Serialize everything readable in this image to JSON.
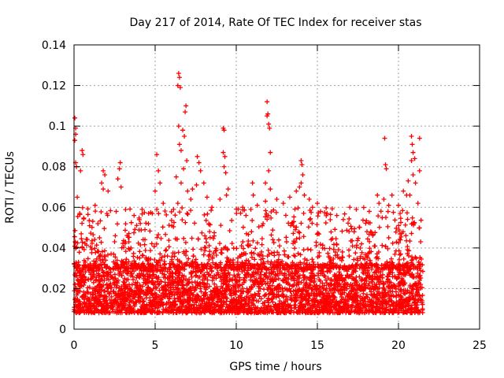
{
  "chart_data": {
    "type": "scatter",
    "title": "Day 217 of 2014, Rate Of TEC Index for receiver stas",
    "xlabel": "GPS time / hours",
    "ylabel": "ROTI / TECUs",
    "xlim": [
      0,
      25
    ],
    "ylim": [
      0,
      0.14
    ],
    "xticks": [
      0,
      5,
      10,
      15,
      20,
      25
    ],
    "xtick_labels": [
      "0",
      "5",
      "10",
      "15",
      "20",
      "25"
    ],
    "yticks": [
      0,
      0.02,
      0.04,
      0.06,
      0.08,
      0.1,
      0.12,
      0.14
    ],
    "ytick_labels": [
      "0",
      "0.02",
      "0.04",
      "0.06",
      "0.08",
      "0.1",
      "0.12",
      "0.14"
    ],
    "grid": true,
    "marker": "plus",
    "color": "#ff0000",
    "x_range_of_data": [
      0,
      21.5
    ],
    "typical_value_band": [
      0.008,
      0.03
    ],
    "notable_points": [
      {
        "x": 0.05,
        "y": 0.104
      },
      {
        "x": 0.1,
        "y": 0.099
      },
      {
        "x": 0.1,
        "y": 0.096
      },
      {
        "x": 0.05,
        "y": 0.093
      },
      {
        "x": 0.5,
        "y": 0.088
      },
      {
        "x": 0.55,
        "y": 0.086
      },
      {
        "x": 0.1,
        "y": 0.082
      },
      {
        "x": 0.15,
        "y": 0.08
      },
      {
        "x": 0.4,
        "y": 0.078
      },
      {
        "x": 0.2,
        "y": 0.065
      },
      {
        "x": 0.35,
        "y": 0.057
      },
      {
        "x": 1.8,
        "y": 0.078
      },
      {
        "x": 1.9,
        "y": 0.076
      },
      {
        "x": 1.7,
        "y": 0.072
      },
      {
        "x": 1.8,
        "y": 0.069
      },
      {
        "x": 1.3,
        "y": 0.061
      },
      {
        "x": 2.1,
        "y": 0.068
      },
      {
        "x": 2.85,
        "y": 0.082
      },
      {
        "x": 2.8,
        "y": 0.079
      },
      {
        "x": 2.7,
        "y": 0.074
      },
      {
        "x": 2.9,
        "y": 0.07
      },
      {
        "x": 2.6,
        "y": 0.058
      },
      {
        "x": 4.2,
        "y": 0.059
      },
      {
        "x": 4.6,
        "y": 0.057
      },
      {
        "x": 3.7,
        "y": 0.056
      },
      {
        "x": 5.1,
        "y": 0.086
      },
      {
        "x": 5.2,
        "y": 0.078
      },
      {
        "x": 5.3,
        "y": 0.072
      },
      {
        "x": 5.0,
        "y": 0.068
      },
      {
        "x": 5.5,
        "y": 0.062
      },
      {
        "x": 5.1,
        "y": 0.059
      },
      {
        "x": 6.45,
        "y": 0.126
      },
      {
        "x": 6.5,
        "y": 0.124
      },
      {
        "x": 6.4,
        "y": 0.12
      },
      {
        "x": 6.55,
        "y": 0.119
      },
      {
        "x": 6.45,
        "y": 0.1
      },
      {
        "x": 6.5,
        "y": 0.091
      },
      {
        "x": 6.7,
        "y": 0.098
      },
      {
        "x": 6.9,
        "y": 0.11
      },
      {
        "x": 6.85,
        "y": 0.107
      },
      {
        "x": 6.8,
        "y": 0.095
      },
      {
        "x": 6.6,
        "y": 0.088
      },
      {
        "x": 6.95,
        "y": 0.083
      },
      {
        "x": 6.75,
        "y": 0.079
      },
      {
        "x": 6.6,
        "y": 0.072
      },
      {
        "x": 7.0,
        "y": 0.068
      },
      {
        "x": 6.3,
        "y": 0.075
      },
      {
        "x": 7.2,
        "y": 0.064
      },
      {
        "x": 6.4,
        "y": 0.062
      },
      {
        "x": 7.6,
        "y": 0.085
      },
      {
        "x": 7.7,
        "y": 0.082
      },
      {
        "x": 7.8,
        "y": 0.078
      },
      {
        "x": 7.55,
        "y": 0.071
      },
      {
        "x": 8.0,
        "y": 0.072
      },
      {
        "x": 8.2,
        "y": 0.065
      },
      {
        "x": 8.5,
        "y": 0.06
      },
      {
        "x": 7.3,
        "y": 0.069
      },
      {
        "x": 9.2,
        "y": 0.099
      },
      {
        "x": 9.25,
        "y": 0.098
      },
      {
        "x": 9.2,
        "y": 0.087
      },
      {
        "x": 9.3,
        "y": 0.085
      },
      {
        "x": 9.25,
        "y": 0.08
      },
      {
        "x": 9.35,
        "y": 0.077
      },
      {
        "x": 9.5,
        "y": 0.069
      },
      {
        "x": 9.4,
        "y": 0.066
      },
      {
        "x": 9.0,
        "y": 0.064
      },
      {
        "x": 10.4,
        "y": 0.06
      },
      {
        "x": 10.6,
        "y": 0.056
      },
      {
        "x": 11.0,
        "y": 0.072
      },
      {
        "x": 11.05,
        "y": 0.066
      },
      {
        "x": 11.3,
        "y": 0.061
      },
      {
        "x": 10.9,
        "y": 0.059
      },
      {
        "x": 11.9,
        "y": 0.112
      },
      {
        "x": 11.95,
        "y": 0.106
      },
      {
        "x": 12.0,
        "y": 0.101
      },
      {
        "x": 11.9,
        "y": 0.105
      },
      {
        "x": 12.05,
        "y": 0.099
      },
      {
        "x": 12.1,
        "y": 0.087
      },
      {
        "x": 12.0,
        "y": 0.078
      },
      {
        "x": 11.8,
        "y": 0.072
      },
      {
        "x": 12.1,
        "y": 0.069
      },
      {
        "x": 11.8,
        "y": 0.063
      },
      {
        "x": 12.5,
        "y": 0.064
      },
      {
        "x": 12.9,
        "y": 0.062
      },
      {
        "x": 13.3,
        "y": 0.065
      },
      {
        "x": 13.7,
        "y": 0.068
      },
      {
        "x": 14.0,
        "y": 0.083
      },
      {
        "x": 14.05,
        "y": 0.081
      },
      {
        "x": 14.1,
        "y": 0.076
      },
      {
        "x": 14.0,
        "y": 0.072
      },
      {
        "x": 13.9,
        "y": 0.07
      },
      {
        "x": 14.2,
        "y": 0.066
      },
      {
        "x": 14.5,
        "y": 0.064
      },
      {
        "x": 14.7,
        "y": 0.06
      },
      {
        "x": 15.0,
        "y": 0.062
      },
      {
        "x": 15.2,
        "y": 0.058
      },
      {
        "x": 15.6,
        "y": 0.057
      },
      {
        "x": 16.2,
        "y": 0.056
      },
      {
        "x": 16.6,
        "y": 0.054
      },
      {
        "x": 17.0,
        "y": 0.06
      },
      {
        "x": 17.4,
        "y": 0.059
      },
      {
        "x": 18.2,
        "y": 0.058
      },
      {
        "x": 18.7,
        "y": 0.066
      },
      {
        "x": 18.8,
        "y": 0.062
      },
      {
        "x": 19.15,
        "y": 0.094
      },
      {
        "x": 19.2,
        "y": 0.081
      },
      {
        "x": 19.25,
        "y": 0.079
      },
      {
        "x": 19.6,
        "y": 0.066
      },
      {
        "x": 19.1,
        "y": 0.064
      },
      {
        "x": 19.4,
        "y": 0.061
      },
      {
        "x": 20.0,
        "y": 0.061
      },
      {
        "x": 20.1,
        "y": 0.057
      },
      {
        "x": 20.3,
        "y": 0.068
      },
      {
        "x": 20.5,
        "y": 0.066
      },
      {
        "x": 20.6,
        "y": 0.073
      },
      {
        "x": 20.8,
        "y": 0.095
      },
      {
        "x": 20.85,
        "y": 0.091
      },
      {
        "x": 20.9,
        "y": 0.087
      },
      {
        "x": 20.8,
        "y": 0.083
      },
      {
        "x": 21.0,
        "y": 0.084
      },
      {
        "x": 20.9,
        "y": 0.076
      },
      {
        "x": 21.05,
        "y": 0.072
      },
      {
        "x": 20.7,
        "y": 0.066
      },
      {
        "x": 21.3,
        "y": 0.094
      },
      {
        "x": 21.3,
        "y": 0.078
      },
      {
        "x": 21.2,
        "y": 0.062
      }
    ]
  }
}
